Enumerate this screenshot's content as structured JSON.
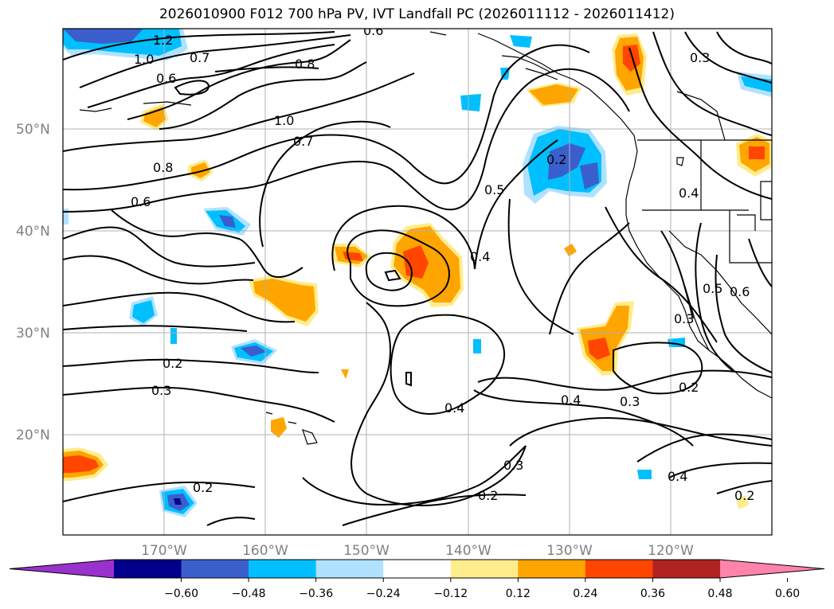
{
  "title": "2026010900 F012 700 hPa PV, IVT Landfall PC (2026011112 - 2026011412)",
  "lat_labels": [
    "50°N",
    "40°N",
    "30°N",
    "20°N"
  ],
  "lon_labels": [
    "170°W",
    "160°W",
    "150°W",
    "140°W",
    "130°W",
    "120°W"
  ],
  "contour_labels": [
    "1.2",
    "1.0",
    "0.7",
    "0.6",
    "0.8",
    "1.0",
    "0.7",
    "0.8",
    "0.6",
    "0.5",
    "0.4",
    "0.2",
    "0.4",
    "0.2",
    "0.3",
    "0.4",
    "0.4",
    "0.3",
    "0.3",
    "0.2",
    "0.2",
    "0.2",
    "0.4",
    "0.2",
    "0.5",
    "0.6",
    "0.3",
    "0.6",
    "0.3"
  ],
  "colorbar": {
    "ticks": [
      "−0.60",
      "−0.48",
      "−0.36",
      "−0.24",
      "−0.12",
      "0.12",
      "0.24",
      "0.36",
      "0.48",
      "0.60"
    ],
    "colors": [
      "#9932cc",
      "#00008b",
      "#3a5fcd",
      "#00bfff",
      "#b0e2ff",
      "#ffffff",
      "#ffec8b",
      "#ffa500",
      "#ff4500",
      "#b22222",
      "#ff83aa"
    ]
  }
}
